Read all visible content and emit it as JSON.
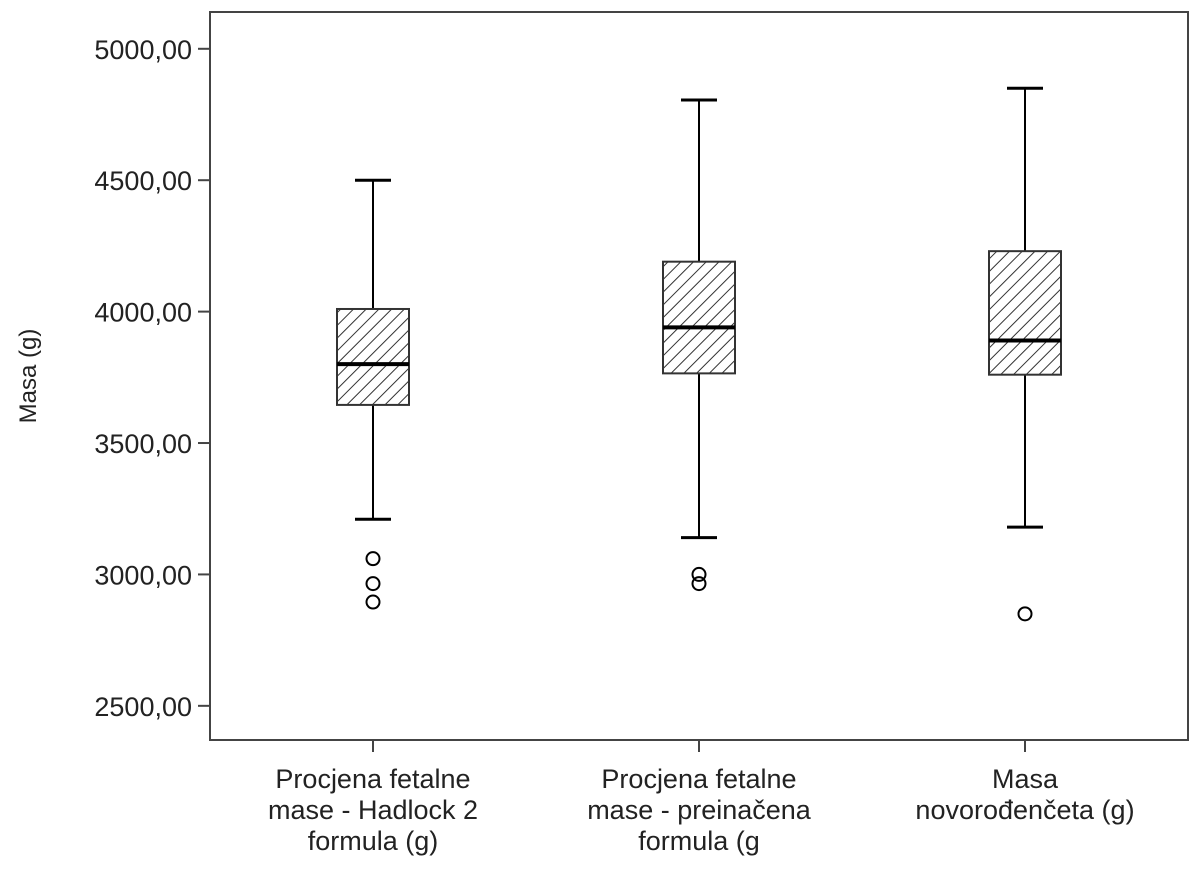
{
  "chart_data": {
    "type": "boxplot",
    "ylabel": "Masa (g)",
    "xlabel": "",
    "ylim": [
      2370,
      5140
    ],
    "yticks": [
      2500,
      3000,
      3500,
      4000,
      4500,
      5000
    ],
    "ytick_labels": [
      "2500,00",
      "3000,00",
      "3500,00",
      "4000,00",
      "4500,00",
      "5000,00"
    ],
    "grid": false,
    "legend": "none",
    "box_fill": "hatched",
    "colors": {
      "line": "#000000",
      "hatch": "#333333",
      "box_bg": "#ffffff"
    },
    "categories": [
      {
        "label_lines": [
          "Procjena fetalne",
          "mase - Hadlock 2",
          "formula (g)"
        ],
        "whisker_low": 3210,
        "q1": 3645,
        "median": 3800,
        "q3": 4010,
        "whisker_high": 4500,
        "outliers": [
          3060,
          2965,
          2895
        ]
      },
      {
        "label_lines": [
          "Procjena fetalne",
          "mase - preinačena",
          "formula (g"
        ],
        "whisker_low": 3140,
        "q1": 3765,
        "median": 3940,
        "q3": 4190,
        "whisker_high": 4805,
        "outliers": [
          3000,
          2965
        ]
      },
      {
        "label_lines": [
          "Masa",
          "novorođenčeta (g)"
        ],
        "whisker_low": 3180,
        "q1": 3760,
        "median": 3890,
        "q3": 4230,
        "whisker_high": 4850,
        "outliers": [
          2850
        ]
      }
    ]
  }
}
